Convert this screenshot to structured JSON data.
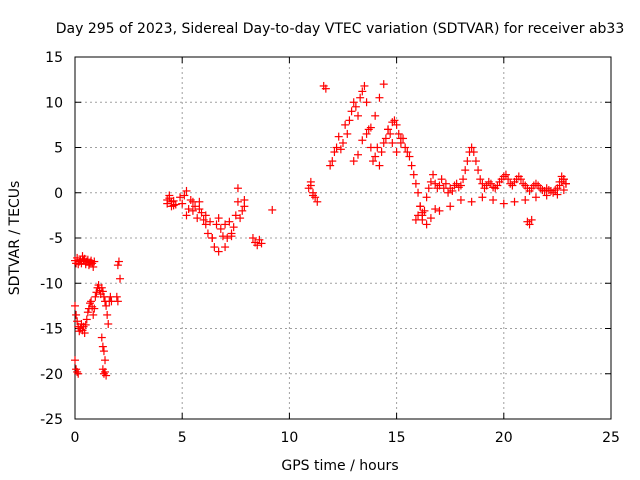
{
  "chart_data": {
    "type": "scatter",
    "title": "Day 295 of 2023, Sidereal Day-to-day VTEC variation (SDTVAR) for receiver ab33",
    "xlabel": "GPS time / hours",
    "ylabel": "SDTVAR / TECUs",
    "xlim": [
      0,
      25
    ],
    "ylim": [
      -25,
      15
    ],
    "xticks": [
      0,
      5,
      10,
      15,
      20,
      25
    ],
    "yticks": [
      -25,
      -20,
      -15,
      -10,
      -5,
      0,
      5,
      10,
      15
    ],
    "grid": true,
    "marker": "+",
    "marker_color": "#ff0000",
    "series": [
      {
        "name": "SDTVAR",
        "x": [
          0.0,
          0.05,
          0.1,
          0.15,
          0.2,
          0.25,
          0.3,
          0.35,
          0.4,
          0.45,
          0.5,
          0.55,
          0.6,
          0.65,
          0.7,
          0.75,
          0.8,
          0.85,
          0.9,
          0.0,
          0.05,
          0.1,
          0.15,
          0.2,
          0.25,
          0.3,
          0.35,
          0.4,
          0.45,
          0.5,
          0.55,
          0.6,
          0.65,
          0.7,
          0.75,
          0.8,
          0.85,
          0.9,
          0.95,
          1.0,
          1.05,
          1.1,
          1.15,
          1.2,
          1.25,
          1.3,
          1.35,
          1.4,
          1.45,
          1.5,
          1.55,
          1.6,
          1.65,
          1.7,
          0.0,
          0.05,
          0.1,
          0.15,
          1.3,
          1.35,
          1.4,
          1.45,
          1.25,
          1.3,
          1.35,
          1.4,
          2.0,
          2.05,
          2.1,
          1.95,
          2.0,
          4.3,
          4.4,
          4.5,
          4.6,
          4.7,
          4.4,
          4.5,
          4.6,
          4.3,
          4.9,
          5.0,
          5.1,
          5.2,
          5.3,
          5.4,
          5.5,
          5.6,
          5.7,
          5.8,
          5.9,
          6.0,
          6.1,
          6.2,
          6.3,
          6.4,
          6.5,
          6.6,
          6.7,
          6.8,
          6.9,
          7.0,
          7.1,
          7.2,
          7.3,
          7.4,
          7.5,
          7.6,
          7.7,
          7.8,
          7.9,
          5.2,
          5.5,
          5.8,
          6.1,
          6.4,
          6.7,
          7.0,
          7.3,
          7.6,
          7.9,
          8.3,
          8.4,
          8.5,
          8.6,
          8.7,
          9.2,
          10.9,
          11.0,
          11.1,
          11.2,
          11.3,
          11.0,
          11.1,
          11.6,
          11.7,
          11.9,
          12.0,
          12.1,
          12.2,
          12.3,
          12.4,
          12.5,
          12.6,
          12.7,
          12.8,
          12.9,
          13.0,
          13.1,
          13.2,
          13.3,
          13.4,
          13.5,
          13.6,
          13.7,
          13.8,
          13.9,
          14.0,
          14.1,
          14.2,
          14.3,
          14.4,
          14.5,
          14.6,
          14.7,
          14.8,
          14.9,
          15.0,
          15.1,
          15.2,
          15.3,
          15.4,
          15.5,
          15.6,
          15.7,
          15.8,
          15.9,
          16.0,
          13.0,
          13.2,
          13.4,
          13.6,
          13.8,
          14.0,
          14.2,
          14.4,
          14.6,
          14.8,
          15.0,
          15.2,
          16.1,
          16.2,
          16.3,
          16.4,
          16.5,
          16.6,
          16.7,
          16.8,
          16.9,
          17.0,
          17.1,
          17.2,
          17.3,
          17.4,
          17.5,
          17.6,
          17.7,
          17.8,
          17.9,
          18.0,
          18.1,
          18.2,
          18.3,
          18.4,
          18.5,
          18.6,
          18.7,
          18.8,
          18.9,
          19.0,
          19.1,
          19.2,
          19.3,
          19.4,
          19.5,
          19.6,
          19.7,
          19.8,
          19.9,
          20.0,
          20.1,
          20.2,
          20.3,
          20.4,
          20.5,
          20.6,
          20.7,
          20.8,
          20.9,
          21.0,
          21.1,
          21.2,
          21.3,
          21.4,
          21.5,
          21.6,
          21.7,
          21.8,
          21.9,
          22.0,
          22.1,
          22.2,
          22.3,
          22.4,
          22.5,
          22.6,
          22.7,
          22.8,
          22.9,
          16.2,
          16.4,
          16.6,
          16.8,
          17.0,
          17.5,
          18.0,
          18.5,
          19.0,
          19.5,
          20.0,
          20.5,
          21.0,
          21.5,
          22.0,
          22.5,
          15.9,
          16.0,
          16.1,
          16.2,
          21.1,
          21.2,
          21.3,
          22.6,
          22.7,
          22.8,
          22.9,
          22.8
        ],
        "y": [
          -7.5,
          -7.8,
          -7.2,
          -7.9,
          -7.6,
          -7.4,
          -7.8,
          -7.0,
          -7.5,
          -7.3,
          -7.9,
          -7.6,
          -7.4,
          -8.0,
          -7.7,
          -7.5,
          -7.8,
          -8.2,
          -7.6,
          -12.5,
          -13.5,
          -14.2,
          -14.8,
          -15.3,
          -15.0,
          -14.5,
          -15.2,
          -14.8,
          -15.5,
          -14.6,
          -14.0,
          -13.2,
          -12.8,
          -12.2,
          -12.0,
          -12.6,
          -13.5,
          -12.8,
          -11.5,
          -11.0,
          -10.5,
          -10.2,
          -10.8,
          -11.2,
          -10.5,
          -10.9,
          -11.5,
          -12.0,
          -12.5,
          -13.5,
          -14.5,
          -12.0,
          -11.5,
          -12.0,
          -18.5,
          -19.5,
          -19.8,
          -20.0,
          -19.5,
          -20.0,
          -19.8,
          -20.2,
          -16.0,
          -17.0,
          -17.5,
          -18.5,
          -8.0,
          -7.6,
          -9.5,
          -11.5,
          -12.0,
          -1.2,
          -0.6,
          -1.5,
          -0.9,
          -1.3,
          -0.3,
          -1.0,
          -1.4,
          -0.8,
          -0.5,
          -1.2,
          -0.3,
          -2.5,
          -1.8,
          -0.8,
          -2.0,
          -1.5,
          -2.8,
          -1.0,
          -2.2,
          -3.0,
          -2.5,
          -4.5,
          -3.2,
          -5.0,
          -6.0,
          -3.5,
          -2.8,
          -4.0,
          -4.8,
          -3.5,
          -5.0,
          -3.2,
          -4.5,
          -3.8,
          -2.5,
          -1.0,
          -2.8,
          -2.0,
          -1.5,
          0.2,
          -1.0,
          -1.8,
          -3.5,
          -5.0,
          -6.5,
          -6.0,
          -4.8,
          0.5,
          -0.8,
          -5.0,
          -5.5,
          -5.8,
          -5.2,
          -5.6,
          -1.9,
          0.5,
          0.8,
          0.0,
          -0.5,
          -1.0,
          1.2,
          -0.3,
          11.8,
          11.5,
          3.0,
          3.5,
          4.5,
          5.0,
          6.2,
          4.8,
          5.5,
          7.5,
          6.5,
          8.0,
          9.0,
          10.0,
          9.5,
          8.5,
          10.5,
          11.2,
          11.8,
          10.0,
          7.0,
          5.0,
          3.5,
          4.0,
          5.0,
          3.0,
          4.5,
          5.5,
          6.0,
          7.0,
          6.5,
          7.8,
          8.0,
          7.5,
          6.5,
          5.5,
          6.0,
          5.0,
          4.5,
          4.0,
          3.0,
          2.0,
          1.0,
          0.0,
          3.5,
          4.2,
          5.8,
          6.5,
          7.2,
          8.5,
          10.5,
          12.0,
          7.0,
          5.5,
          4.5,
          6.0,
          -1.5,
          -3.0,
          -2.0,
          -0.5,
          0.5,
          1.2,
          2.0,
          1.0,
          0.5,
          0.8,
          1.5,
          0.5,
          1.0,
          0.0,
          0.5,
          0.2,
          0.8,
          1.0,
          0.6,
          0.8,
          1.5,
          2.5,
          3.5,
          4.5,
          5.0,
          4.5,
          3.5,
          2.5,
          1.5,
          1.0,
          0.5,
          0.8,
          1.2,
          1.0,
          0.6,
          0.5,
          0.8,
          1.2,
          1.5,
          1.8,
          2.0,
          1.5,
          1.0,
          0.8,
          1.2,
          1.5,
          1.8,
          1.5,
          1.0,
          0.8,
          0.5,
          0.2,
          0.5,
          0.8,
          1.0,
          0.8,
          0.5,
          0.3,
          0.2,
          0.5,
          0.3,
          0.2,
          0.0,
          0.3,
          0.5,
          0.8,
          1.2,
          1.5,
          1.0,
          -2.5,
          -3.5,
          -2.8,
          -1.8,
          -2.0,
          -1.5,
          -0.8,
          -1.0,
          -0.5,
          -0.8,
          -1.2,
          -1.0,
          -0.8,
          -0.5,
          -0.3,
          -0.2,
          -3.0,
          -2.5,
          -1.5,
          -2.2,
          -3.2,
          -3.5,
          -3.0,
          1.2,
          1.8,
          1.5,
          1.0,
          0.3
        ]
      }
    ]
  }
}
